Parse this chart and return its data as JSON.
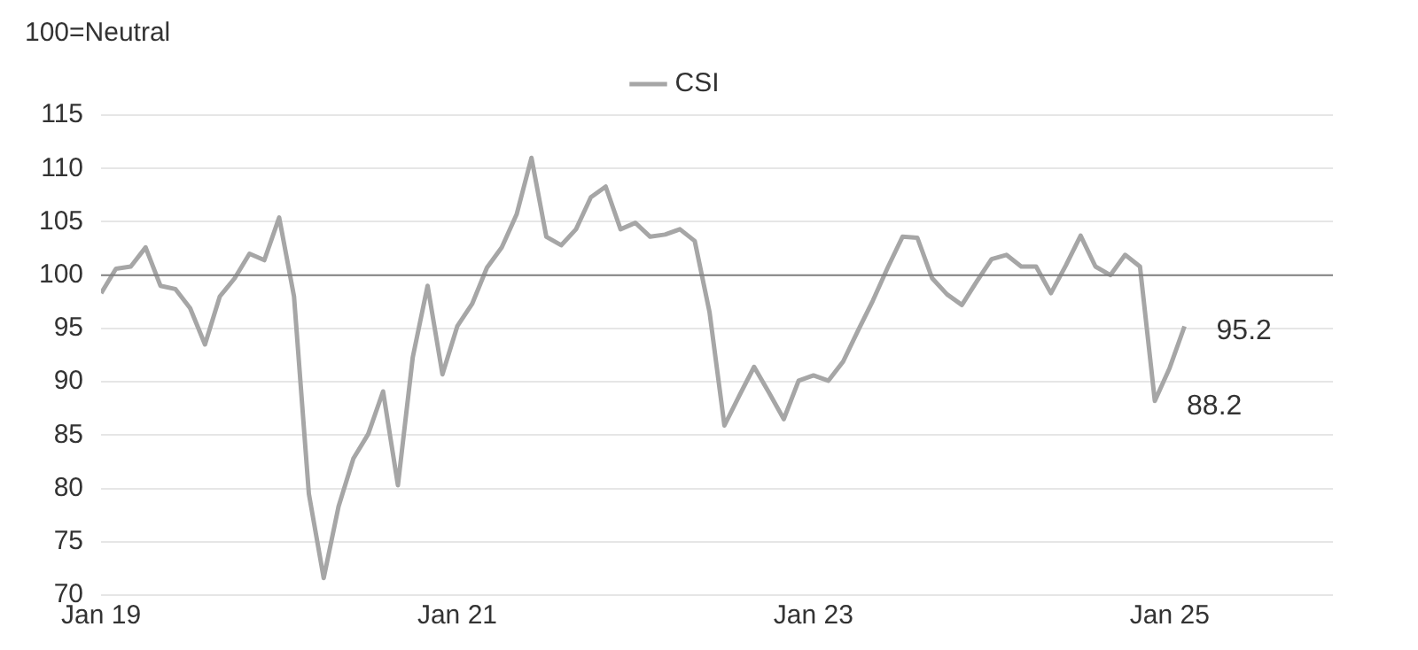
{
  "chart_data": {
    "type": "line",
    "ylabel": "100=Neutral",
    "legend": "top",
    "grid": "y",
    "marker": "none",
    "line_style": "solid",
    "xlim": [
      "2019-01",
      "2025-12"
    ],
    "xticks": [
      {
        "value": "2019-01",
        "label": "Jan 19"
      },
      {
        "value": "2021-01",
        "label": "Jan 21"
      },
      {
        "value": "2023-01",
        "label": "Jan 23"
      },
      {
        "value": "2025-01",
        "label": "Jan 25"
      }
    ],
    "ylim": [
      70,
      115
    ],
    "yticks": [
      70,
      75,
      80,
      85,
      90,
      95,
      100,
      105,
      110,
      115
    ],
    "ref_lines": [
      {
        "axis": "y",
        "value": 100,
        "color": "#808080"
      }
    ],
    "x": [
      "2019-01",
      "2019-02",
      "2019-03",
      "2019-04",
      "2019-05",
      "2019-06",
      "2019-07",
      "2019-08",
      "2019-09",
      "2019-10",
      "2019-11",
      "2019-12",
      "2020-01",
      "2020-02",
      "2020-03",
      "2020-04",
      "2020-05",
      "2020-06",
      "2020-07",
      "2020-08",
      "2020-09",
      "2020-10",
      "2020-11",
      "2020-12",
      "2021-01",
      "2021-02",
      "2021-03",
      "2021-04",
      "2021-05",
      "2021-06",
      "2021-07",
      "2021-08",
      "2021-09",
      "2021-10",
      "2021-11",
      "2021-12",
      "2022-01",
      "2022-02",
      "2022-03",
      "2022-04",
      "2022-05",
      "2022-06",
      "2022-07",
      "2022-08",
      "2022-09",
      "2022-10",
      "2022-11",
      "2022-12",
      "2023-01",
      "2023-02",
      "2023-03",
      "2023-04",
      "2023-05",
      "2023-06",
      "2023-07",
      "2023-08",
      "2023-09",
      "2023-10",
      "2023-11",
      "2023-12",
      "2024-01",
      "2024-02",
      "2024-03",
      "2024-04",
      "2024-05",
      "2024-06",
      "2024-07",
      "2024-08",
      "2024-09",
      "2024-10",
      "2024-11",
      "2024-12",
      "2025-01",
      "2025-02"
    ],
    "series": [
      {
        "name": "CSI",
        "color": "#a6a6a6",
        "values": [
          98.3,
          100.6,
          100.8,
          102.6,
          99.0,
          98.7,
          96.9,
          93.5,
          98.0,
          99.7,
          102.0,
          101.4,
          105.4,
          98.0,
          79.5,
          71.6,
          78.3,
          82.8,
          85.1,
          89.1,
          80.3,
          92.3,
          99.0,
          90.7,
          95.2,
          97.3,
          100.7,
          102.6,
          105.7,
          111.0,
          103.6,
          102.8,
          104.3,
          107.3,
          108.3,
          104.3,
          104.9,
          103.6,
          103.8,
          104.3,
          103.2,
          96.5,
          85.9,
          88.7,
          91.4,
          89.0,
          86.5,
          90.1,
          90.6,
          90.1,
          91.9,
          94.8,
          97.6,
          100.7,
          103.6,
          103.5,
          99.7,
          98.2,
          97.2,
          99.4,
          101.5,
          101.9,
          100.8,
          100.8,
          98.3,
          100.9,
          103.7,
          100.8,
          100.0,
          101.9,
          100.8,
          88.2,
          91.3,
          95.2
        ]
      }
    ],
    "annotations": [
      {
        "text": "88.2",
        "x": "2024-12",
        "y": 88.2
      },
      {
        "text": "95.2",
        "x": "2025-02",
        "y": 95.2
      }
    ]
  }
}
